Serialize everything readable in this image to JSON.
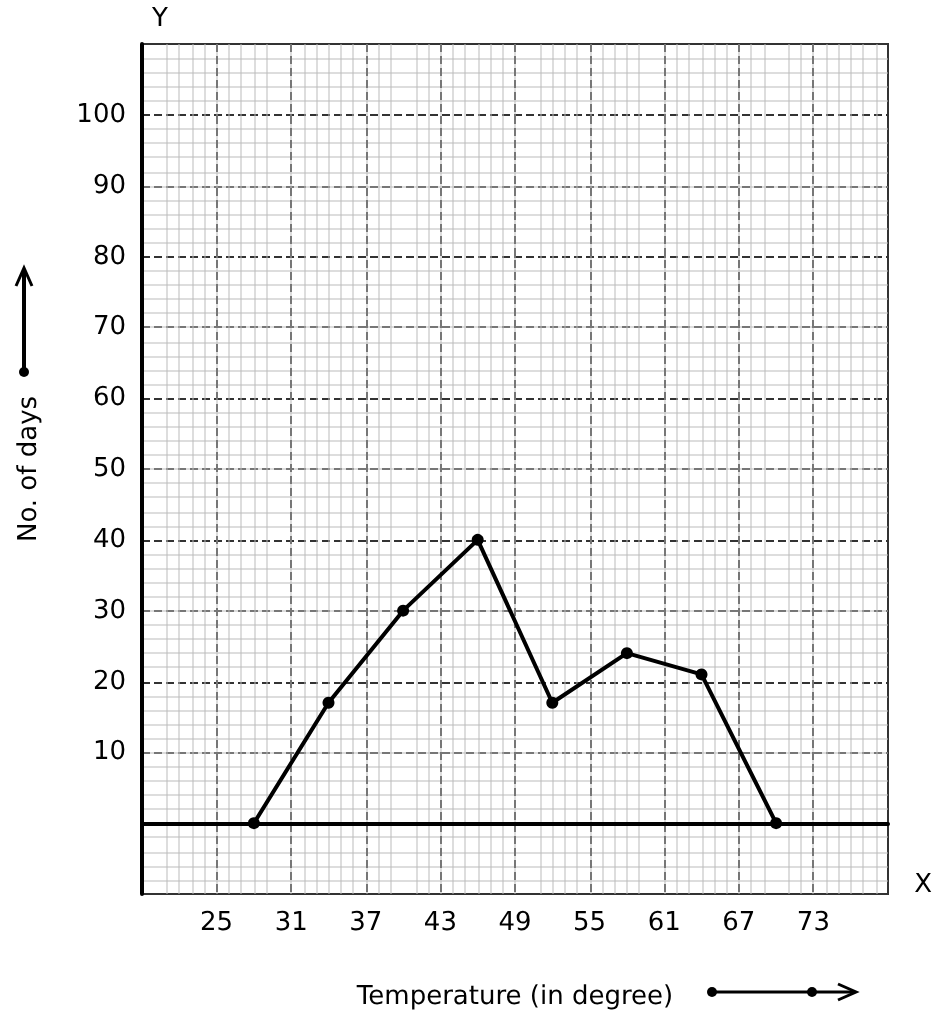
{
  "chart_data": {
    "type": "line",
    "xlabel": "Temperature (in degree)",
    "ylabel": "No. of days",
    "annotations": [
      "X",
      "Y"
    ],
    "x": [
      28,
      34,
      40,
      46,
      52,
      58,
      64,
      70
    ],
    "series": [
      {
        "color": "#000000",
        "values": [
          0,
          17,
          30,
          40,
          17,
          24,
          21,
          0
        ]
      }
    ],
    "xlim": [
      19,
      79
    ],
    "xticks": [
      25,
      31,
      37,
      43,
      49,
      55,
      61,
      67,
      73
    ],
    "ylim": [
      -10,
      110
    ],
    "yticks": [
      10,
      20,
      30,
      40,
      50,
      60,
      70,
      80,
      90,
      100
    ],
    "grid": true,
    "marker": "circle",
    "line_style": "solid"
  }
}
